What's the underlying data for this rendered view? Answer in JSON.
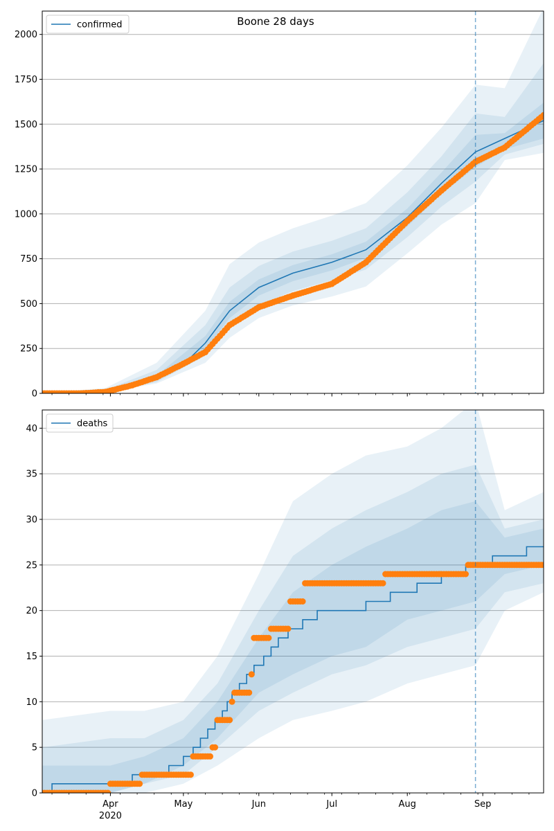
{
  "title": "Boone 28 days",
  "colors": {
    "model": "#1f77b4",
    "observed": "#ff7f0e",
    "band": "#1f77b4",
    "grid": "#b0b0b0",
    "cutoff": "#1f77b4"
  },
  "chart_data": [
    {
      "type": "line",
      "legend": "confirmed",
      "legend_position": "top-left",
      "grid": "horizontal",
      "x_range": [
        "2020-03-04",
        "2020-09-26"
      ],
      "ylim": [
        0,
        2130
      ],
      "yticks": [
        0,
        250,
        500,
        750,
        1000,
        1250,
        1500,
        1750,
        2000
      ],
      "cutoff_date": "2020-08-29",
      "model": {
        "dates": [
          "2020-03-04",
          "2020-03-20",
          "2020-03-30",
          "2020-04-10",
          "2020-04-20",
          "2020-05-01",
          "2020-05-10",
          "2020-05-20",
          "2020-06-01",
          "2020-06-15",
          "2020-07-01",
          "2020-07-15",
          "2020-08-01",
          "2020-08-15",
          "2020-08-29",
          "2020-09-10",
          "2020-09-26"
        ],
        "values": [
          0,
          3,
          10,
          40,
          85,
          160,
          280,
          460,
          590,
          670,
          730,
          800,
          980,
          1170,
          1345,
          1420,
          1520
        ]
      },
      "bands": [
        {
          "dates": [
            "2020-03-04",
            "2020-03-30",
            "2020-04-20",
            "2020-05-10",
            "2020-05-20",
            "2020-06-01",
            "2020-06-15",
            "2020-07-01",
            "2020-07-15",
            "2020-08-01",
            "2020-08-15",
            "2020-08-29",
            "2020-09-10",
            "2020-09-26"
          ],
          "low": [
            0,
            5,
            55,
            170,
            310,
            420,
            490,
            540,
            595,
            780,
            940,
            1060,
            1300,
            1340
          ],
          "high": [
            0,
            30,
            170,
            460,
            720,
            840,
            920,
            990,
            1060,
            1270,
            1480,
            1720,
            1700,
            2150
          ]
        },
        {
          "dates": [
            "2020-03-04",
            "2020-03-30",
            "2020-04-20",
            "2020-05-10",
            "2020-05-20",
            "2020-06-01",
            "2020-06-15",
            "2020-07-01",
            "2020-07-15",
            "2020-08-01",
            "2020-08-15",
            "2020-08-29",
            "2020-09-10",
            "2020-09-26"
          ],
          "low": [
            0,
            7,
            62,
            210,
            370,
            490,
            570,
            630,
            690,
            870,
            1040,
            1180,
            1330,
            1390
          ],
          "high": [
            0,
            20,
            130,
            380,
            590,
            710,
            790,
            850,
            920,
            1120,
            1320,
            1560,
            1540,
            1840
          ]
        },
        {
          "dates": [
            "2020-03-04",
            "2020-03-30",
            "2020-04-20",
            "2020-05-10",
            "2020-05-20",
            "2020-06-01",
            "2020-06-15",
            "2020-07-01",
            "2020-07-15",
            "2020-08-01",
            "2020-08-15",
            "2020-08-29",
            "2020-09-10",
            "2020-09-26"
          ],
          "low": [
            0,
            8,
            72,
            245,
            420,
            545,
            625,
            685,
            755,
            930,
            1110,
            1260,
            1360,
            1420
          ],
          "high": [
            0,
            14,
            100,
            320,
            510,
            635,
            715,
            775,
            845,
            1030,
            1230,
            1440,
            1450,
            1620
          ]
        }
      ],
      "observed": {
        "segments": [
          [
            "2020-03-04",
            "2020-03-20",
            0,
            0
          ],
          [
            "2020-03-20",
            "2020-03-30",
            0,
            8
          ],
          [
            "2020-03-30",
            "2020-04-10",
            8,
            45
          ],
          [
            "2020-04-10",
            "2020-04-20",
            45,
            90
          ],
          [
            "2020-04-20",
            "2020-05-01",
            90,
            165
          ],
          [
            "2020-05-01",
            "2020-05-10",
            165,
            230
          ],
          [
            "2020-05-10",
            "2020-05-20",
            230,
            380
          ],
          [
            "2020-05-20",
            "2020-06-01",
            380,
            480
          ],
          [
            "2020-06-01",
            "2020-06-15",
            480,
            545
          ],
          [
            "2020-06-15",
            "2020-07-01",
            545,
            610
          ],
          [
            "2020-07-01",
            "2020-07-15",
            610,
            730
          ],
          [
            "2020-07-15",
            "2020-08-01",
            730,
            960
          ],
          [
            "2020-08-01",
            "2020-08-15",
            960,
            1130
          ],
          [
            "2020-08-15",
            "2020-08-29",
            1130,
            1290
          ],
          [
            "2020-08-29",
            "2020-09-10",
            1290,
            1370
          ],
          [
            "2020-09-10",
            "2020-09-26",
            1370,
            1550
          ]
        ]
      }
    },
    {
      "type": "line",
      "legend": "deaths",
      "legend_position": "top-left",
      "grid": "horizontal",
      "x_range": [
        "2020-03-04",
        "2020-09-26"
      ],
      "ylim": [
        0,
        42
      ],
      "yticks": [
        0,
        5,
        10,
        15,
        20,
        25,
        30,
        35,
        40
      ],
      "xticks": [
        {
          "date": "2020-04-01",
          "label": "Apr",
          "label2": "2020"
        },
        {
          "date": "2020-05-01",
          "label": "May"
        },
        {
          "date": "2020-06-01",
          "label": "Jun"
        },
        {
          "date": "2020-07-01",
          "label": "Jul"
        },
        {
          "date": "2020-08-01",
          "label": "Aug"
        },
        {
          "date": "2020-09-01",
          "label": "Sep"
        }
      ],
      "cutoff_date": "2020-08-29",
      "model": {
        "step": true,
        "dates": [
          "2020-03-04",
          "2020-03-08",
          "2020-04-10",
          "2020-04-15",
          "2020-04-25",
          "2020-05-01",
          "2020-05-05",
          "2020-05-08",
          "2020-05-11",
          "2020-05-14",
          "2020-05-17",
          "2020-05-19",
          "2020-05-21",
          "2020-05-24",
          "2020-05-27",
          "2020-05-30",
          "2020-06-03",
          "2020-06-06",
          "2020-06-09",
          "2020-06-13",
          "2020-06-19",
          "2020-06-25",
          "2020-07-05",
          "2020-07-15",
          "2020-07-25",
          "2020-08-05",
          "2020-08-15",
          "2020-08-25",
          "2020-08-29",
          "2020-09-05",
          "2020-09-19",
          "2020-09-26"
        ],
        "values": [
          0,
          1,
          2,
          2,
          3,
          4,
          5,
          6,
          7,
          8,
          9,
          10,
          11,
          12,
          13,
          14,
          15,
          16,
          17,
          18,
          19,
          20,
          20,
          21,
          22,
          23,
          24,
          25,
          25,
          26,
          27,
          27
        ]
      },
      "bands": [
        {
          "dates": [
            "2020-03-04",
            "2020-04-01",
            "2020-04-15",
            "2020-05-01",
            "2020-05-15",
            "2020-06-01",
            "2020-06-15",
            "2020-07-01",
            "2020-07-15",
            "2020-08-01",
            "2020-08-15",
            "2020-08-29",
            "2020-09-10",
            "2020-09-26"
          ],
          "low": [
            0,
            0,
            0,
            1,
            3,
            6,
            8,
            9,
            10,
            12,
            13,
            14,
            20,
            22
          ],
          "high": [
            8,
            9,
            9,
            10,
            15,
            24,
            32,
            35,
            37,
            38,
            40,
            43,
            31,
            33
          ]
        },
        {
          "dates": [
            "2020-03-04",
            "2020-04-01",
            "2020-04-15",
            "2020-05-01",
            "2020-05-15",
            "2020-06-01",
            "2020-06-15",
            "2020-07-01",
            "2020-07-15",
            "2020-08-01",
            "2020-08-15",
            "2020-08-29",
            "2020-09-10",
            "2020-09-26"
          ],
          "low": [
            0,
            0,
            1,
            2,
            5,
            9,
            11,
            13,
            14,
            16,
            17,
            18,
            22,
            23
          ],
          "high": [
            5,
            6,
            6,
            8,
            12,
            20,
            26,
            29,
            31,
            33,
            35,
            36,
            29,
            30
          ]
        },
        {
          "dates": [
            "2020-03-04",
            "2020-04-01",
            "2020-04-15",
            "2020-05-01",
            "2020-05-15",
            "2020-06-01",
            "2020-06-15",
            "2020-07-01",
            "2020-07-15",
            "2020-08-01",
            "2020-08-15",
            "2020-08-29",
            "2020-09-10",
            "2020-09-26"
          ],
          "low": [
            0,
            0,
            1,
            3,
            6,
            11,
            13,
            15,
            16,
            19,
            20,
            21,
            24,
            25
          ],
          "high": [
            3,
            3,
            4,
            6,
            10,
            17,
            22,
            25,
            27,
            29,
            31,
            32,
            28,
            29
          ]
        }
      ],
      "observed": {
        "segments": [
          [
            "2020-03-04",
            "2020-03-31",
            0,
            0
          ],
          [
            "2020-04-01",
            "2020-04-13",
            1,
            1
          ],
          [
            "2020-04-14",
            "2020-05-04",
            2,
            2
          ],
          [
            "2020-05-05",
            "2020-05-12",
            4,
            4
          ],
          [
            "2020-05-13",
            "2020-05-14",
            5,
            5
          ],
          [
            "2020-05-15",
            "2020-05-20",
            8,
            8
          ],
          [
            "2020-05-21",
            "2020-05-21",
            10,
            10
          ],
          [
            "2020-05-22",
            "2020-05-28",
            11,
            11
          ],
          [
            "2020-05-29",
            "2020-05-29",
            13,
            13
          ],
          [
            "2020-05-30",
            "2020-06-05",
            17,
            17
          ],
          [
            "2020-06-06",
            "2020-06-13",
            18,
            18
          ],
          [
            "2020-06-14",
            "2020-06-19",
            21,
            21
          ],
          [
            "2020-06-20",
            "2020-07-22",
            23,
            23
          ],
          [
            "2020-07-23",
            "2020-08-25",
            24,
            24
          ],
          [
            "2020-08-26",
            "2020-09-26",
            25,
            25
          ]
        ]
      }
    }
  ]
}
